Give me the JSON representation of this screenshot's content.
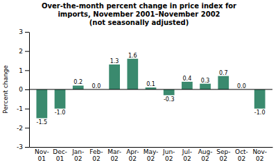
{
  "chart_data": {
    "type": "bar",
    "title": "Over-the-month percent change in price index for\nimports, November 2001–November 2002\n(not seasonally adjusted)",
    "y_label": "Percent change",
    "categories": [
      "Nov-\n01",
      "Dec-\n01",
      "Jan-\n02",
      "Feb-\n02",
      "Mar-\n02",
      "Apr-\n02",
      "May-\n02",
      "Jun-\n02",
      "Jul-\n02",
      "Aug-\n02",
      "Sep-\n02",
      "Oct-\n02",
      "Nov-\n02"
    ],
    "values": [
      -1.5,
      -1.0,
      0.2,
      0.0,
      1.3,
      1.6,
      0.1,
      -0.3,
      0.4,
      0.3,
      0.7,
      0.0,
      -1.0
    ],
    "value_labels": [
      "-1.5",
      "-1.0",
      "0.2",
      "0.0",
      "1.3",
      "1.6",
      "0.1",
      "-0.3",
      "0.4",
      "0.3",
      "0.7",
      "0.0",
      "-1.0"
    ],
    "color": "#3a8a6e",
    "ylim": [
      -3,
      3
    ],
    "yticks": [
      -3,
      -2,
      -1,
      0,
      1,
      2,
      3
    ],
    "grid": false,
    "data_labels": true
  }
}
